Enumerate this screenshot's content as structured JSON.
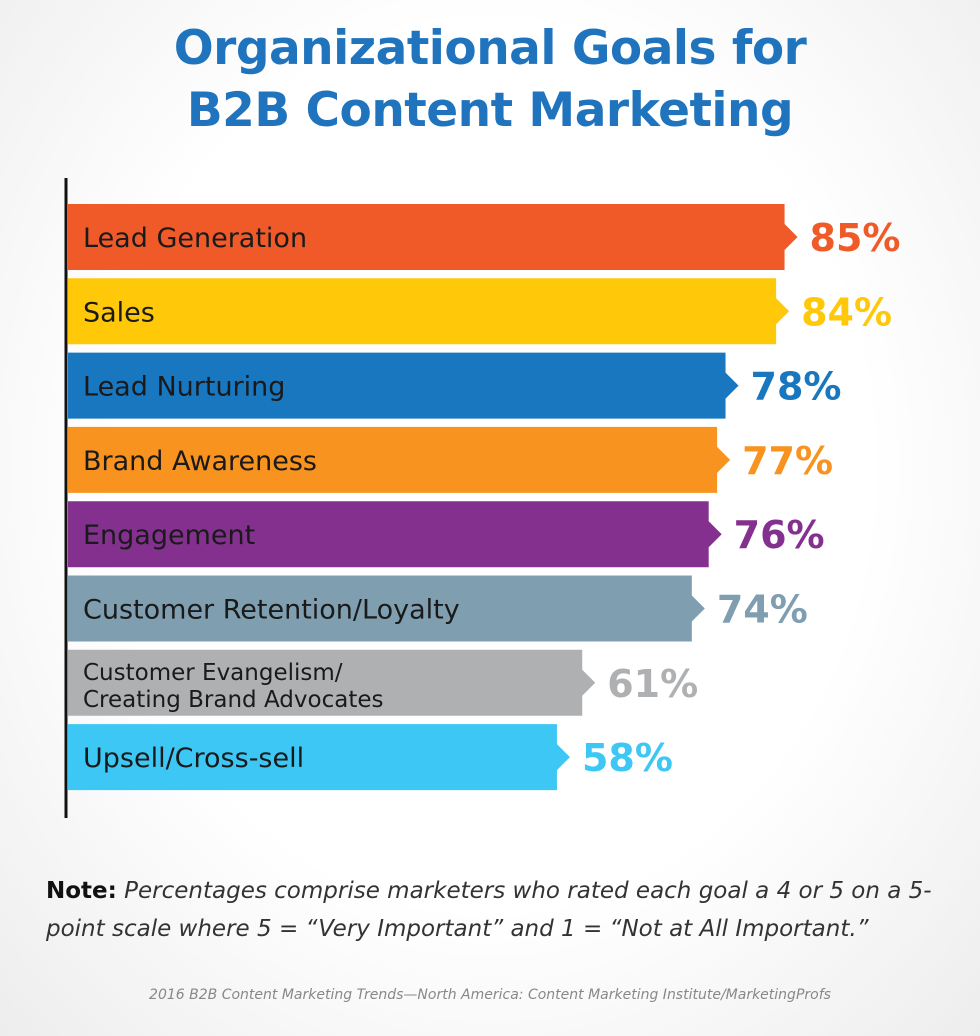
{
  "title_line1": "Organizational Goals for",
  "title_line2": "B2B Content Marketing",
  "chart_data": {
    "type": "bar",
    "orientation": "horizontal",
    "title": "Organizational Goals for B2B Content Marketing",
    "xlim": [
      0,
      100
    ],
    "grid": false,
    "legend": "none",
    "categories": [
      [
        "Lead Generation"
      ],
      [
        "Sales"
      ],
      [
        "Lead Nurturing"
      ],
      [
        "Brand Awareness"
      ],
      [
        "Engagement"
      ],
      [
        "Customer Retention/Loyalty"
      ],
      [
        "Customer Evangelism/",
        "Creating Brand Advocates"
      ],
      [
        "Upsell/Cross-sell"
      ]
    ],
    "values": [
      85,
      84,
      78,
      77,
      76,
      74,
      61,
      58
    ],
    "value_labels": [
      "85%",
      "84%",
      "78%",
      "77%",
      "76%",
      "74%",
      "61%",
      "58%"
    ],
    "colors": [
      "#f05a28",
      "#ffc808",
      "#1877bf",
      "#f7931e",
      "#83308f",
      "#7f9fb0",
      "#afb0b2",
      "#3dc7f4"
    ]
  },
  "note": {
    "head": "Note:",
    "body": " Percentages comprise marketers who rated each goal a 4 or 5 on a 5-point scale where 5 = “Very Important” and 1 = “Not at All Important.”"
  },
  "source": "2016 B2B Content Marketing Trends—North America: Content Marketing Institute/MarketingProfs"
}
